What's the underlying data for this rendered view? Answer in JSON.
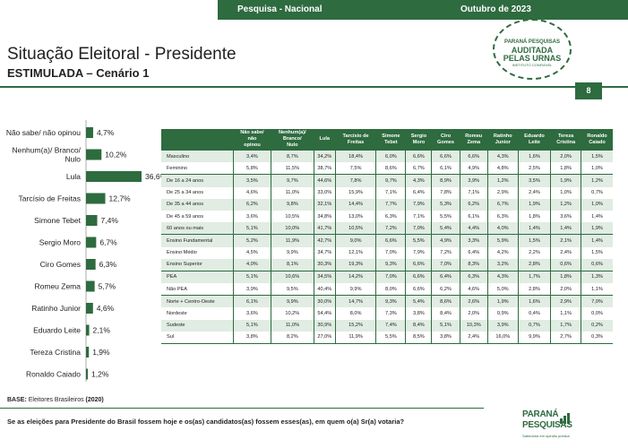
{
  "header": {
    "survey": "Pesquisa - Nacional",
    "date": "Outubro de 2023",
    "page_number": "8"
  },
  "title": "Situação Eleitoral - Presidente",
  "subtitle": "ESTIMULADA – Cenário 1",
  "seal": {
    "line1": "PARANÁ PESQUISAS",
    "line2": "AUDITADA",
    "line3": "PELAS URNAS",
    "line4": "INSTITUTO CONFIÁVEL"
  },
  "colors": {
    "primary": "#2e6b3f",
    "bar": "#2e6b3f",
    "shade": "#e1ece3"
  },
  "chart_data": {
    "type": "bar",
    "orientation": "horizontal",
    "categories": [
      "Não sabe/ não opinou",
      "Nenhum(a)/ Branco/ Nulo",
      "Lula",
      "Tarcísio de Freitas",
      "Simone Tebet",
      "Sergio Moro",
      "Ciro Gomes",
      "Romeu Zema",
      "Ratinho Junior",
      "Eduardo Leite",
      "Tereza Cristina",
      "Ronaldo Caiado"
    ],
    "category_lines": [
      [
        "Não sabe/ não opinou"
      ],
      [
        "Nenhum(a)/ Branco/",
        "Nulo"
      ],
      [
        "Lula"
      ],
      [
        "Tarcísio de Freitas"
      ],
      [
        "Simone Tebet"
      ],
      [
        "Sergio Moro"
      ],
      [
        "Ciro Gomes"
      ],
      [
        "Romeu Zema"
      ],
      [
        "Ratinho Junior"
      ],
      [
        "Eduardo Leite"
      ],
      [
        "Tereza Cristina"
      ],
      [
        "Ronaldo Caiado"
      ]
    ],
    "values": [
      4.7,
      10.2,
      36.6,
      12.7,
      7.4,
      6.7,
      6.3,
      5.7,
      4.6,
      2.1,
      1.9,
      1.2
    ],
    "value_labels": [
      "4,7%",
      "10,2%",
      "36,6%",
      "12,7%",
      "7,4%",
      "6,7%",
      "6,3%",
      "5,7%",
      "4,6%",
      "2,1%",
      "1,9%",
      "1,2%"
    ],
    "xlim": [
      0,
      36.6
    ],
    "grid": false,
    "legend": "none"
  },
  "table": {
    "headers": [
      [
        "Não sabe/",
        "não",
        "opinou"
      ],
      [
        "Nenhum(a)/",
        "Branco/",
        "Nulo"
      ],
      [
        "Lula"
      ],
      [
        "Tarcísio de",
        "Freitas"
      ],
      [
        "Simone",
        "Tebet"
      ],
      [
        "Sergio",
        "Moro"
      ],
      [
        "Ciro",
        "Gomes"
      ],
      [
        "Romeu",
        "Zema"
      ],
      [
        "Ratinho",
        "Junior"
      ],
      [
        "Eduardo",
        "Leite"
      ],
      [
        "Tereza",
        "Cristina"
      ],
      [
        "Ronaldo",
        "Caiado"
      ]
    ],
    "groups": [
      {
        "rows": [
          {
            "label": "Masculino",
            "values": [
              "3,4%",
              "8,7%",
              "34,2%",
              "18,4%",
              "6,0%",
              "6,6%",
              "6,6%",
              "6,6%",
              "4,3%",
              "1,6%",
              "2,0%",
              "1,5%"
            ]
          },
          {
            "label": "Feminino",
            "values": [
              "5,8%",
              "11,5%",
              "38,7%",
              "7,5%",
              "8,6%",
              "6,7%",
              "6,1%",
              "4,9%",
              "4,8%",
              "2,5%",
              "1,8%",
              "1,0%"
            ]
          }
        ]
      },
      {
        "rows": [
          {
            "label": "De 16 a 24 anos",
            "values": [
              "3,5%",
              "9,7%",
              "44,6%",
              "7,8%",
              "9,7%",
              "4,3%",
              "8,9%",
              "3,9%",
              "1,2%",
              "3,5%",
              "1,9%",
              "1,2%"
            ]
          },
          {
            "label": "De 25 a 34 anos",
            "values": [
              "4,6%",
              "11,0%",
              "33,0%",
              "15,9%",
              "7,1%",
              "6,4%",
              "7,8%",
              "7,1%",
              "2,9%",
              "2,4%",
              "1,0%",
              "0,7%"
            ]
          },
          {
            "label": "De 35 a 44 anos",
            "values": [
              "6,2%",
              "9,8%",
              "32,1%",
              "14,4%",
              "7,7%",
              "7,9%",
              "5,3%",
              "6,2%",
              "6,7%",
              "1,9%",
              "1,2%",
              "1,0%"
            ]
          },
          {
            "label": "De 45 a 59 anos",
            "values": [
              "3,6%",
              "10,5%",
              "34,8%",
              "13,0%",
              "6,3%",
              "7,1%",
              "5,5%",
              "6,1%",
              "6,3%",
              "1,8%",
              "3,6%",
              "1,4%"
            ]
          },
          {
            "label": "60 anos ou mais",
            "values": [
              "5,1%",
              "10,0%",
              "41,7%",
              "10,5%",
              "7,2%",
              "7,0%",
              "5,4%",
              "4,4%",
              "4,0%",
              "1,4%",
              "1,4%",
              "1,9%"
            ]
          }
        ]
      },
      {
        "rows": [
          {
            "label": "Ensino Fundamental",
            "values": [
              "5,2%",
              "11,9%",
              "42,7%",
              "9,0%",
              "6,6%",
              "5,5%",
              "4,9%",
              "3,3%",
              "5,9%",
              "1,5%",
              "2,1%",
              "1,4%"
            ]
          },
          {
            "label": "Ensino Médio",
            "values": [
              "4,5%",
              "9,9%",
              "34,7%",
              "12,1%",
              "7,0%",
              "7,9%",
              "7,2%",
              "6,4%",
              "4,2%",
              "2,2%",
              "2,4%",
              "1,5%"
            ]
          },
          {
            "label": "Ensino Superior",
            "values": [
              "4,0%",
              "8,1%",
              "30,3%",
              "19,3%",
              "9,3%",
              "6,6%",
              "7,0%",
              "8,3%",
              "3,2%",
              "2,8%",
              "0,6%",
              "0,6%"
            ]
          }
        ]
      },
      {
        "rows": [
          {
            "label": "PEA",
            "values": [
              "5,1%",
              "10,6%",
              "34,5%",
              "14,2%",
              "7,0%",
              "6,6%",
              "6,4%",
              "6,3%",
              "4,3%",
              "1,7%",
              "1,8%",
              "1,3%"
            ]
          },
          {
            "label": "Não PEA",
            "values": [
              "3,9%",
              "9,5%",
              "40,4%",
              "9,9%",
              "8,0%",
              "6,6%",
              "6,2%",
              "4,6%",
              "5,0%",
              "2,8%",
              "2,0%",
              "1,1%"
            ]
          }
        ]
      },
      {
        "rows": [
          {
            "label": "Norte + Centro-Oeste",
            "values": [
              "6,1%",
              "9,9%",
              "30,0%",
              "14,7%",
              "9,3%",
              "5,4%",
              "8,6%",
              "2,6%",
              "1,9%",
              "1,6%",
              "2,9%",
              "7,0%"
            ]
          },
          {
            "label": "Nordeste",
            "values": [
              "3,6%",
              "10,2%",
              "54,4%",
              "8,0%",
              "7,3%",
              "3,8%",
              "8,4%",
              "2,0%",
              "0,9%",
              "0,4%",
              "1,1%",
              "0,0%"
            ]
          },
          {
            "label": "Sudeste",
            "values": [
              "5,1%",
              "11,0%",
              "30,9%",
              "15,2%",
              "7,4%",
              "8,4%",
              "5,1%",
              "10,3%",
              "3,9%",
              "0,7%",
              "1,7%",
              "0,2%"
            ]
          },
          {
            "label": "Sul",
            "values": [
              "3,8%",
              "8,2%",
              "27,0%",
              "11,9%",
              "5,5%",
              "8,5%",
              "3,8%",
              "2,4%",
              "16,0%",
              "9,9%",
              "2,7%",
              "0,3%"
            ]
          }
        ]
      }
    ]
  },
  "base": {
    "label": "BASE:",
    "text": " Eleitores Brasileiros ",
    "count": "(2020)"
  },
  "question": "Se as eleições para Presidente do Brasil fossem hoje e os(as) candidatos(as) fossem esses(as), em quem o(a) Sr(a) votaria?",
  "logo": {
    "line1": "PARANÁ",
    "line2": "PESQUISAS",
    "tagline": "Sabedoria em opinião pública"
  }
}
